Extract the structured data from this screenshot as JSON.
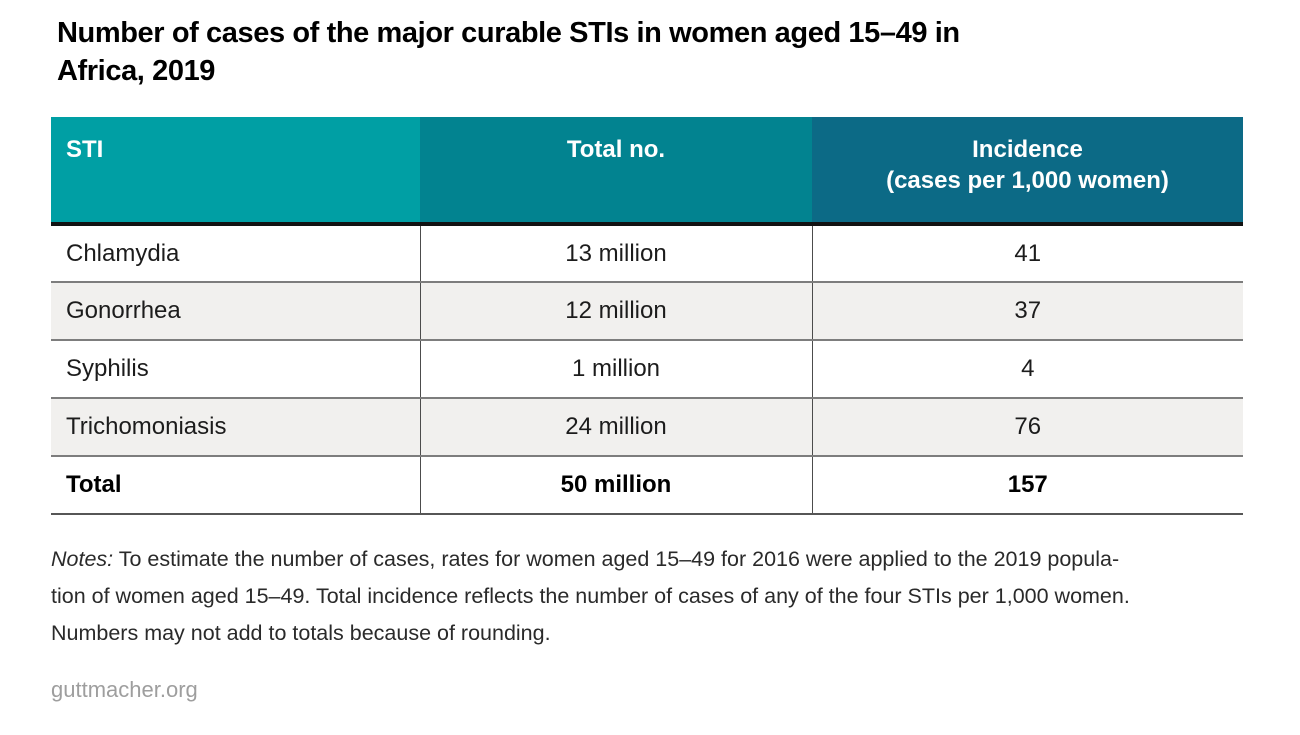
{
  "title": {
    "lines": [
      "Number of cases of the major curable STIs in women aged 15–49 in",
      "Africa, 2019"
    ]
  },
  "table": {
    "header": [
      {
        "label": "STI",
        "sublabel": ""
      },
      {
        "label": "Total no.",
        "sublabel": ""
      },
      {
        "label": "Incidence",
        "sublabel": "(cases per 1,000 women)"
      }
    ],
    "rows": [
      {
        "sti": "Chlamydia",
        "total": "13 million",
        "incidence": "41"
      },
      {
        "sti": "Gonorrhea",
        "total": "12 million",
        "incidence": "37"
      },
      {
        "sti": "Syphilis",
        "total": "1 million",
        "incidence": "4"
      },
      {
        "sti": "Trichomoniasis",
        "total": "24 million",
        "incidence": "76"
      }
    ],
    "total_row": {
      "sti": "Total",
      "total": "50 million",
      "incidence": "157"
    }
  },
  "notes": {
    "label": "Notes:",
    "line1_rest": " To estimate the number of cases, rates for women aged 15–49 for 2016 were applied to the 2019 popula-",
    "line2": "tion of women aged 15–49. Total incidence reflects the number of cases of any of the four STIs per 1,000 women.",
    "line3": "Numbers may not add to totals because of rounding."
  },
  "footer": {
    "site": "guttmacher.org"
  },
  "colors": {
    "header_col1": "#009FA4",
    "header_col2": "#028390",
    "header_col3": "#0C6A86",
    "row_alt": "#F1F0EE",
    "header_text": "#FFFFFF",
    "footer_text": "#9E9E9E"
  },
  "chart_data": {
    "type": "table",
    "title": "Number of cases of the major curable STIs in women aged 15–49 in Africa, 2019",
    "columns": [
      "STI",
      "Total no.",
      "Incidence (cases per 1,000 women)"
    ],
    "rows": [
      [
        "Chlamydia",
        "13 million",
        41
      ],
      [
        "Gonorrhea",
        "12 million",
        37
      ],
      [
        "Syphilis",
        "1 million",
        4
      ],
      [
        "Trichomoniasis",
        "24 million",
        76
      ],
      [
        "Total",
        "50 million",
        157
      ]
    ],
    "source": "guttmacher.org"
  }
}
